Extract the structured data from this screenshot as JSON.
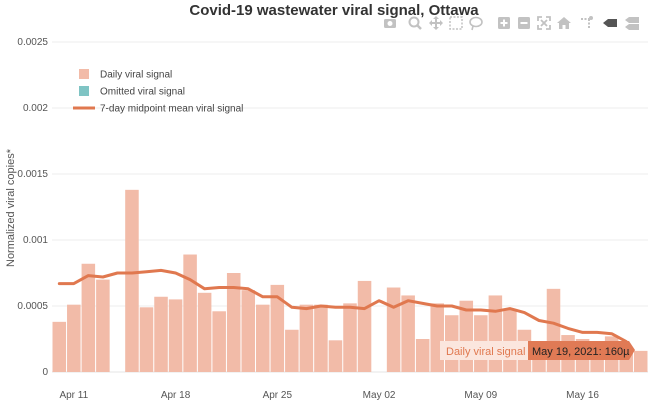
{
  "title": "Covid-19 wastewater viral signal, Ottawa",
  "modebar": {
    "icons": [
      "camera-icon",
      "zoom-icon",
      "pan-icon",
      "box-select-icon",
      "lasso-select-icon",
      "zoom-in-icon",
      "zoom-out-icon",
      "autoscale-icon",
      "reset-axes-icon",
      "toggle-spike-lines-icon",
      "hover-closest-icon",
      "hover-compare-icon"
    ]
  },
  "legend": {
    "items": [
      {
        "label": "Daily viral signal",
        "color": "#f2bba8",
        "kind": "bar"
      },
      {
        "label": "Omitted viral signal",
        "color": "#7fc4c4",
        "kind": "bar"
      },
      {
        "label": "7-day midpoint mean viral signal",
        "color": "#e0784f",
        "kind": "line"
      }
    ]
  },
  "tooltip": {
    "series_label": "Daily viral signal",
    "value_label": "May 19, 2021: 160µ"
  },
  "chart_data": {
    "type": "bar",
    "title": "Covid-19 wastewater viral signal, Ottawa",
    "xlabel": "",
    "ylabel": "Normalized viral copies*",
    "ylim": [
      0,
      0.0025
    ],
    "yticks": [
      "0",
      "0.0005",
      "0.001",
      "0.0015",
      "0.002",
      "0.0025"
    ],
    "ytick_values": [
      0,
      0.0005,
      0.001,
      0.0015,
      0.002,
      0.0025
    ],
    "xticks": [
      "Apr 11",
      "Apr 18",
      "Apr 25",
      "May 02",
      "May 09",
      "May 16"
    ],
    "xtick_dates": [
      "2021-04-11",
      "2021-04-18",
      "2021-04-25",
      "2021-05-02",
      "2021-05-09",
      "2021-05-16"
    ],
    "xrange": [
      "2021-04-10",
      "2021-05-21"
    ],
    "grid": true,
    "legend_position": "top-left",
    "series": [
      {
        "name": "Daily viral signal",
        "type": "bar",
        "color": "#f2bba8",
        "x": [
          "2021-04-10",
          "2021-04-11",
          "2021-04-12",
          "2021-04-13",
          "2021-04-15",
          "2021-04-16",
          "2021-04-17",
          "2021-04-18",
          "2021-04-19",
          "2021-04-20",
          "2021-04-21",
          "2021-04-22",
          "2021-04-23",
          "2021-04-24",
          "2021-04-25",
          "2021-04-26",
          "2021-04-27",
          "2021-04-28",
          "2021-04-29",
          "2021-04-30",
          "2021-05-01",
          "2021-05-03",
          "2021-05-04",
          "2021-05-05",
          "2021-05-06",
          "2021-05-07",
          "2021-05-08",
          "2021-05-09",
          "2021-05-10",
          "2021-05-11",
          "2021-05-12",
          "2021-05-13",
          "2021-05-14",
          "2021-05-15",
          "2021-05-16",
          "2021-05-17",
          "2021-05-18",
          "2021-05-19",
          "2021-05-20"
        ],
        "y": [
          0.00038,
          0.00051,
          0.00082,
          0.0007,
          0.00138,
          0.00049,
          0.00057,
          0.00055,
          0.00089,
          0.0006,
          0.00046,
          0.00075,
          0.00062,
          0.00051,
          0.00066,
          0.00032,
          0.00051,
          0.00051,
          0.00024,
          0.00052,
          0.00069,
          0.00064,
          0.00058,
          0.00025,
          0.00052,
          0.00043,
          0.00054,
          0.00043,
          0.00058,
          0.00047,
          0.00032,
          0.00022,
          0.00063,
          0.00028,
          0.00025,
          0.00022,
          0.00027,
          0.00016,
          0.00016
        ]
      },
      {
        "name": "7-day midpoint mean viral signal",
        "type": "line",
        "color": "#e0784f",
        "x": [
          "2021-04-10",
          "2021-04-11",
          "2021-04-12",
          "2021-04-13",
          "2021-04-14",
          "2021-04-15",
          "2021-04-16",
          "2021-04-17",
          "2021-04-18",
          "2021-04-19",
          "2021-04-20",
          "2021-04-21",
          "2021-04-22",
          "2021-04-23",
          "2021-04-24",
          "2021-04-25",
          "2021-04-26",
          "2021-04-27",
          "2021-04-28",
          "2021-04-29",
          "2021-04-30",
          "2021-05-01",
          "2021-05-02",
          "2021-05-03",
          "2021-05-04",
          "2021-05-05",
          "2021-05-06",
          "2021-05-07",
          "2021-05-08",
          "2021-05-09",
          "2021-05-10",
          "2021-05-11",
          "2021-05-12",
          "2021-05-13",
          "2021-05-14",
          "2021-05-15",
          "2021-05-16",
          "2021-05-17",
          "2021-05-18",
          "2021-05-19"
        ],
        "y": [
          0.00067,
          0.00067,
          0.00073,
          0.00072,
          0.00075,
          0.00075,
          0.00076,
          0.00077,
          0.00075,
          0.0007,
          0.00063,
          0.00064,
          0.00064,
          0.00063,
          0.00057,
          0.00057,
          0.00049,
          0.00048,
          0.0005,
          0.00049,
          0.00049,
          0.00048,
          0.00054,
          0.00049,
          0.00054,
          0.00052,
          0.0005,
          0.0005,
          0.00047,
          0.00047,
          0.00046,
          0.00048,
          0.00045,
          0.00039,
          0.00037,
          0.00033,
          0.0003,
          0.0003,
          0.00029,
          0.00023
        ]
      }
    ]
  }
}
